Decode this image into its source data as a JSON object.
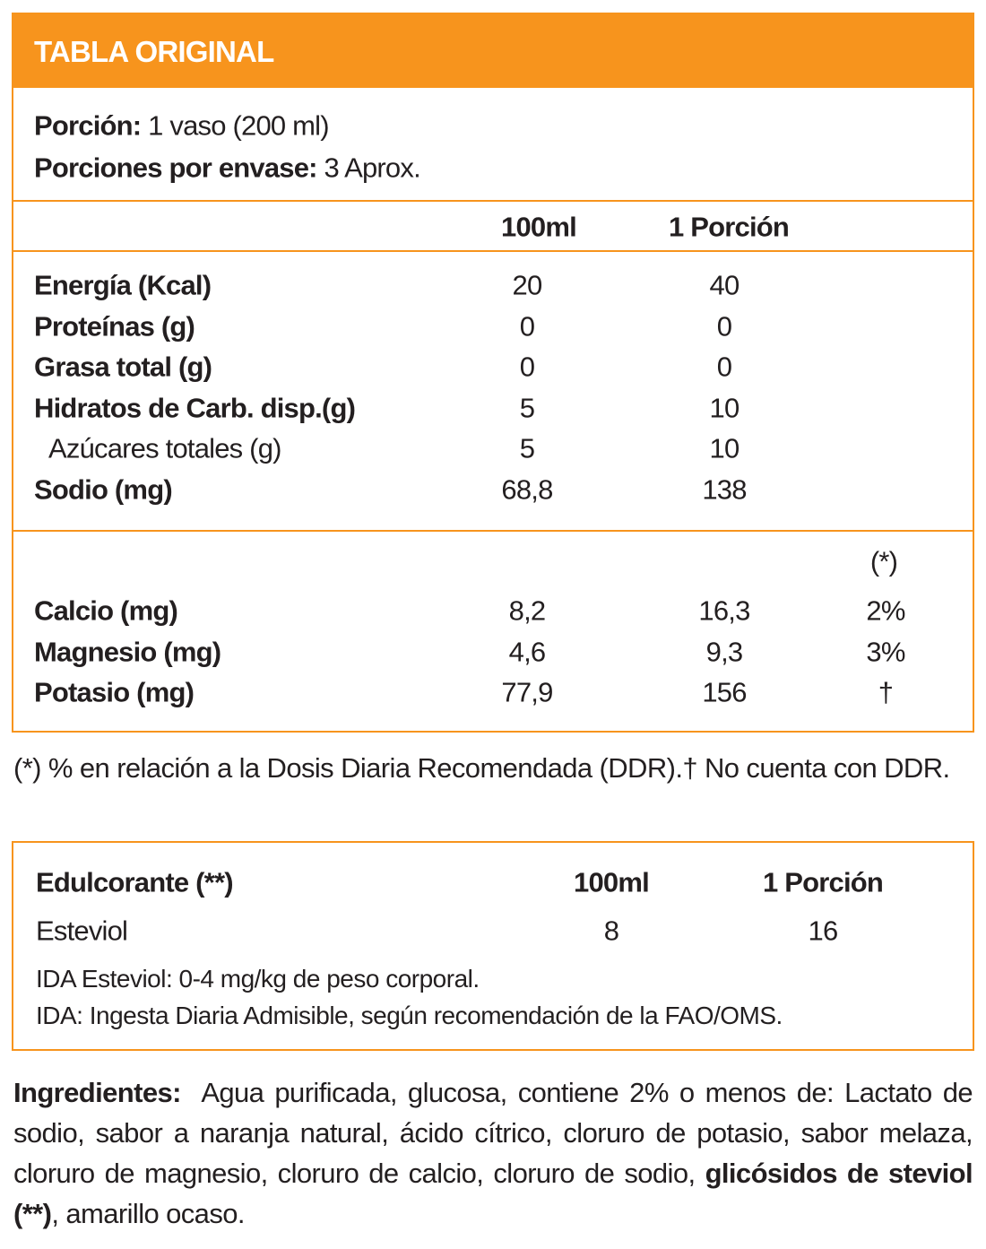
{
  "header": {
    "title": "TABLA ORIGINAL"
  },
  "serving": {
    "portion_label": "Porción:",
    "portion_value": "1 vaso (200 ml)",
    "servings_label": "Porciones por envase:",
    "servings_value": "3 Aprox."
  },
  "table": {
    "columns": [
      "100ml",
      "1 Porción"
    ],
    "rows": [
      [
        "Energía (Kcal)",
        "20",
        "40"
      ],
      [
        "Proteínas (g)",
        "0",
        "0"
      ],
      [
        "Grasa total (g)",
        "0",
        "0"
      ],
      [
        "Hidratos de Carb. disp.(g)",
        "5",
        "10"
      ],
      [
        "Azúcares totales (g)",
        "5",
        "10"
      ],
      [
        "Sodio (mg)",
        "68,8",
        "138"
      ]
    ]
  },
  "minerals": {
    "ddr_header": "(*)",
    "rows": [
      [
        "Calcio (mg)",
        "8,2",
        "16,3",
        "2%"
      ],
      [
        "Magnesio (mg)",
        "4,6",
        "9,3",
        "3%"
      ],
      [
        "Potasio (mg)",
        "77,9",
        "156",
        "†"
      ]
    ]
  },
  "footnote": "(*) % en relación a la Dosis Diaria Recomendada (DDR).† No cuenta con DDR.",
  "sweetener": {
    "columns": [
      "Edulcorante (**)",
      "100ml",
      "1 Porción"
    ],
    "rows": [
      [
        "Esteviol",
        "8",
        "16"
      ]
    ],
    "notes": [
      "IDA Esteviol: 0-4 mg/kg de peso corporal.",
      "IDA: Ingesta Diaria Admisible, según recomendación de la FAO/OMS."
    ]
  },
  "ingredients": {
    "label": "Ingredientes:",
    "text": "Agua purificada, glucosa, contiene 2% o menos de: Lactato de sodio, sabor a naranja natural, ácido cítrico, cloruro de potasio, sabor melaza, cloruro de magnesio, cloruro de calcio, cloruro de sodio,",
    "highlight": "glicósidos de steviol (**)",
    "tail": ", amarillo ocaso."
  }
}
